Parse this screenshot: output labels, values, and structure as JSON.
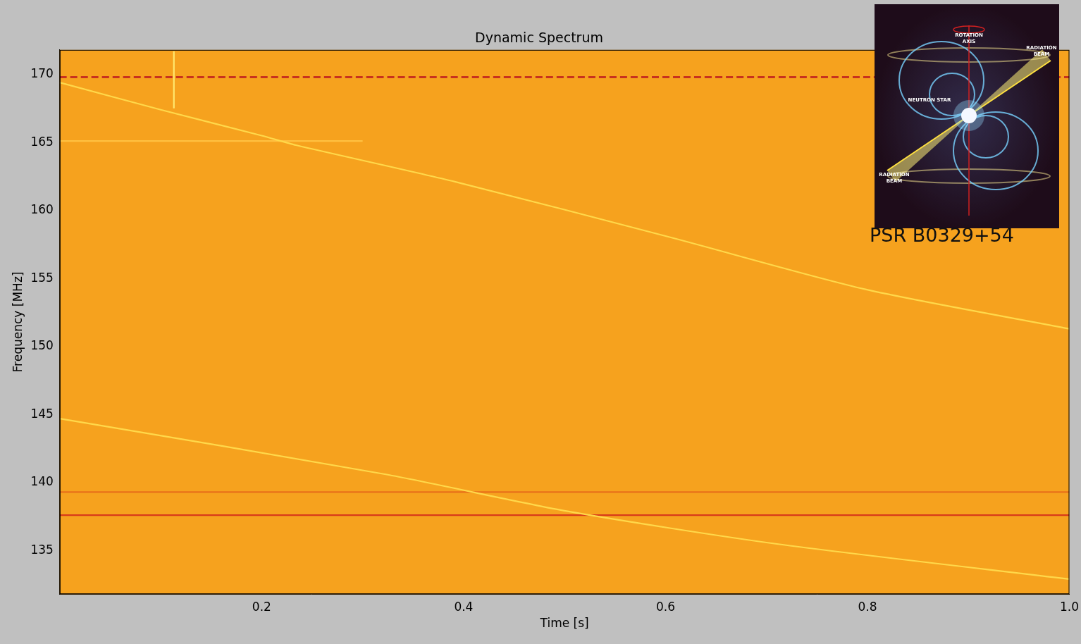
{
  "chart_data": {
    "type": "line",
    "title": "Dynamic Spectrum",
    "x_label": "Time [s]",
    "y_label": "Frequency [MHz]",
    "xlim": [
      0,
      1.0
    ],
    "xticks": [
      0.2,
      0.4,
      0.6,
      0.8,
      {
        "value": 1.0,
        "label": "1.0"
      }
    ],
    "ylim": [
      131.8,
      171.8
    ],
    "yticks": [
      135,
      140,
      145,
      150,
      155,
      160,
      165,
      170
    ],
    "grid": false,
    "series": [
      {
        "color": "#ffd84a",
        "line_style": "solid",
        "x": [
          0,
          0.1,
          0.2,
          0.234,
          0.392,
          0.606,
          0.798,
          1.0
        ],
        "values": [
          169.4,
          167.4,
          165.5,
          164.8,
          162.1,
          158.0,
          154.2,
          151.3
        ]
      },
      {
        "color": "#ffd84a",
        "line_style": "solid",
        "x": [
          0,
          0.323,
          0.502,
          0.709,
          1.0
        ],
        "values": [
          144.7,
          140.6,
          137.9,
          135.5,
          132.9
        ]
      },
      {
        "color": "#c8321e",
        "line_style": "dashed",
        "x": [
          0,
          1.0
        ],
        "values": [
          169.8,
          169.8
        ]
      },
      {
        "color": "#d83a1a",
        "line_style": "solid",
        "x": [
          0,
          1.0
        ],
        "values": [
          137.6,
          137.6
        ]
      },
      {
        "color": "#ffc040",
        "line_style": "solid",
        "x": [
          0,
          0.3
        ],
        "values": [
          165.1,
          165.1
        ]
      },
      {
        "color": "#e8701a",
        "line_style": "solid",
        "x": [
          0,
          1.0
        ],
        "values": [
          139.3,
          139.3
        ]
      },
      {
        "color": "#ffe870",
        "line_style": "solid",
        "x": [
          0.113,
          0.113
        ],
        "values": [
          167.5,
          171.7
        ]
      }
    ],
    "inset": {
      "title": "PSR B0329+54",
      "labels": [
        "ROTATION AXIS",
        "NEUTRON STAR",
        "RADIATION BEAM",
        "RADIATION BEAM"
      ]
    }
  }
}
